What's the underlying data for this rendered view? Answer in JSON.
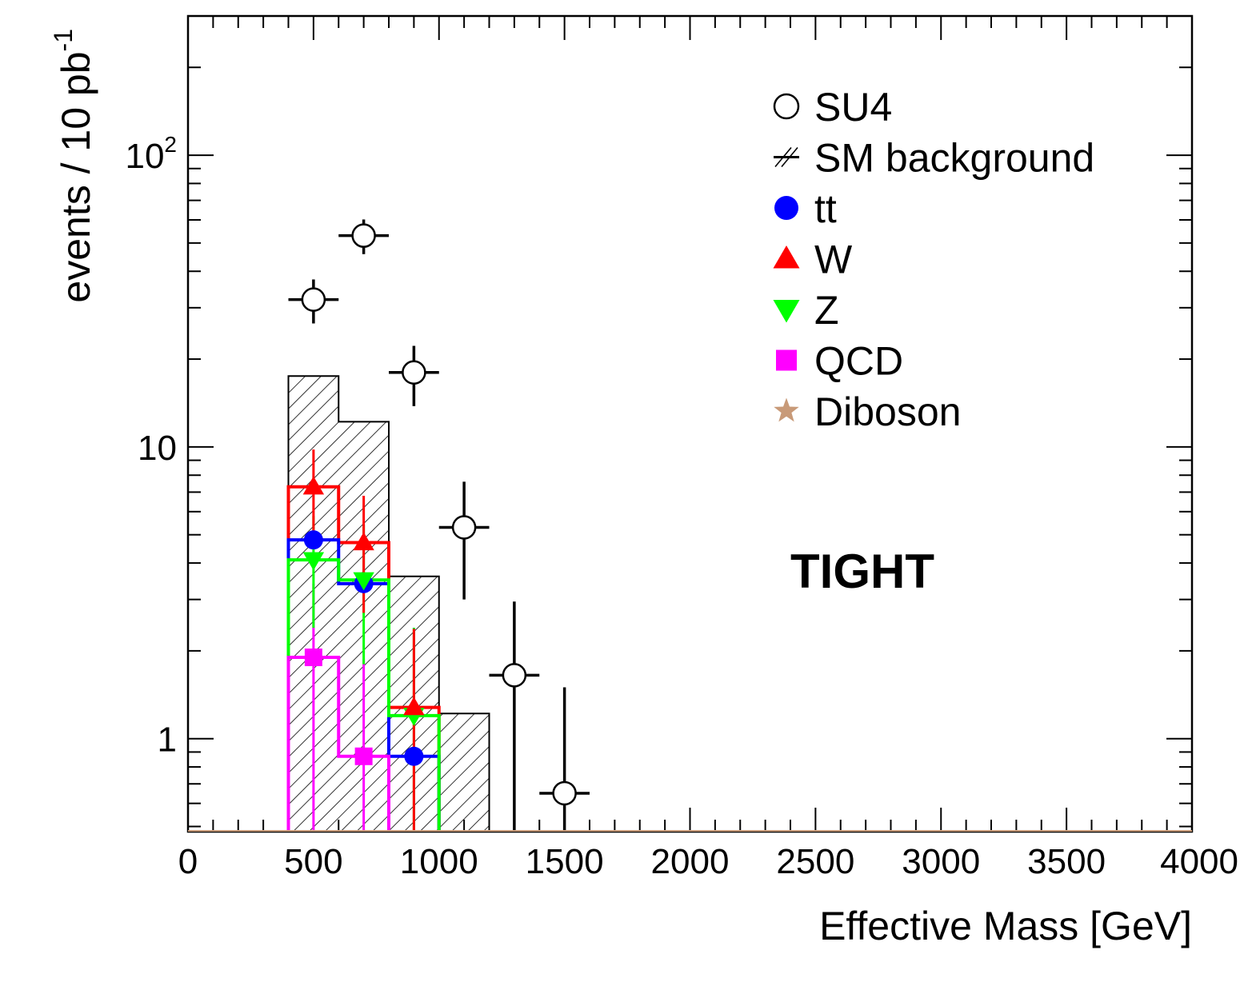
{
  "chart_data": {
    "type": "histogram",
    "xlabel": "Effective Mass [GeV]",
    "ylabel": "events / 10 pb",
    "ylabel_sup": "-1",
    "xlim": [
      0,
      4000
    ],
    "ylim": [
      0.48,
      300
    ],
    "yscale": "log",
    "x_ticks": [
      "0",
      "500",
      "1000",
      "1500",
      "2000",
      "2500",
      "3000",
      "3500",
      "4000"
    ],
    "y_ticks": [
      {
        "value": 1,
        "label": "1",
        "base": "1",
        "exp": ""
      },
      {
        "value": 10,
        "label": "10",
        "base": "10",
        "exp": ""
      },
      {
        "value": 100,
        "label": "10^2",
        "base": "10",
        "exp": "2"
      }
    ],
    "annotation": "TIGHT",
    "legend_position": "top-right",
    "legend": [
      {
        "label": "SU4",
        "marker": "open-circle",
        "color": "#000000"
      },
      {
        "label": "SM background",
        "marker": "hatched-box",
        "color": "#000000"
      },
      {
        "label": "tt",
        "marker": "circle",
        "color": "#0000ff"
      },
      {
        "label": "W",
        "marker": "triangle-up",
        "color": "#ff0000"
      },
      {
        "label": "Z",
        "marker": "triangle-down",
        "color": "#00ff00"
      },
      {
        "label": "QCD",
        "marker": "square",
        "color": "#ff00ff"
      },
      {
        "label": "Diboson",
        "marker": "star",
        "color": "#c89a78"
      }
    ],
    "series": [
      {
        "name": "SM background",
        "style": "hatched-histogram",
        "color": "#000000",
        "bins": [
          {
            "x0": 400,
            "x1": 600,
            "y": 17.5
          },
          {
            "x0": 600,
            "x1": 800,
            "y": 12.2
          },
          {
            "x0": 800,
            "x1": 1000,
            "y": 3.6
          },
          {
            "x0": 1000,
            "x1": 1200,
            "y": 1.22
          }
        ]
      },
      {
        "name": "W",
        "style": "histogram-markers",
        "color": "#ff0000",
        "marker": "triangle-up",
        "bins": [
          {
            "x0": 400,
            "x1": 600,
            "y": 7.3,
            "err_lo": 2.5,
            "err_hi": 2.5
          },
          {
            "x0": 600,
            "x1": 800,
            "y": 4.7,
            "err_lo": 2.0,
            "err_hi": 2.1
          },
          {
            "x0": 800,
            "x1": 1000,
            "y": 1.28,
            "err_lo": 0.9,
            "err_hi": 1.1
          }
        ]
      },
      {
        "name": "tt",
        "style": "histogram-markers",
        "color": "#0000ff",
        "marker": "circle",
        "bins": [
          {
            "x0": 400,
            "x1": 600,
            "y": 4.8
          },
          {
            "x0": 600,
            "x1": 800,
            "y": 3.4
          },
          {
            "x0": 800,
            "x1": 1000,
            "y": 0.87
          }
        ]
      },
      {
        "name": "Z",
        "style": "histogram-markers",
        "color": "#00ff00",
        "marker": "triangle-down",
        "bins": [
          {
            "x0": 400,
            "x1": 600,
            "y": 4.1,
            "err_lo": 1.7,
            "err_hi": 1.7
          },
          {
            "x0": 600,
            "x1": 800,
            "y": 3.5,
            "err_lo": 1.7,
            "err_hi": 1.9
          },
          {
            "x0": 800,
            "x1": 1000,
            "y": 1.2,
            "err_lo": 0.9,
            "err_hi": 1.2
          }
        ]
      },
      {
        "name": "QCD",
        "style": "histogram-markers",
        "color": "#ff00ff",
        "marker": "square",
        "bins": [
          {
            "x0": 400,
            "x1": 600,
            "y": 1.9,
            "err_lo": 1.5,
            "err_hi": 1.5
          },
          {
            "x0": 600,
            "x1": 800,
            "y": 0.87,
            "err_lo": 0.6,
            "err_hi": 1.0
          }
        ]
      },
      {
        "name": "SU4",
        "style": "points",
        "color": "#000000",
        "marker": "open-circle",
        "points": [
          {
            "x": 500,
            "y": 32,
            "xerr": 100,
            "err_lo": 5.5,
            "err_hi": 5.5
          },
          {
            "x": 700,
            "y": 53,
            "xerr": 100,
            "err_lo": 7.2,
            "err_hi": 7.2
          },
          {
            "x": 900,
            "y": 18,
            "xerr": 100,
            "err_lo": 4.2,
            "err_hi": 4.2
          },
          {
            "x": 1100,
            "y": 5.3,
            "xerr": 100,
            "err_lo": 2.3,
            "err_hi": 2.3
          },
          {
            "x": 1300,
            "y": 1.65,
            "xerr": 100,
            "err_lo": 1.3,
            "err_hi": 1.3
          },
          {
            "x": 1500,
            "y": 0.65,
            "xerr": 100,
            "err_lo": 0.55,
            "err_hi": 0.85
          }
        ]
      }
    ]
  }
}
